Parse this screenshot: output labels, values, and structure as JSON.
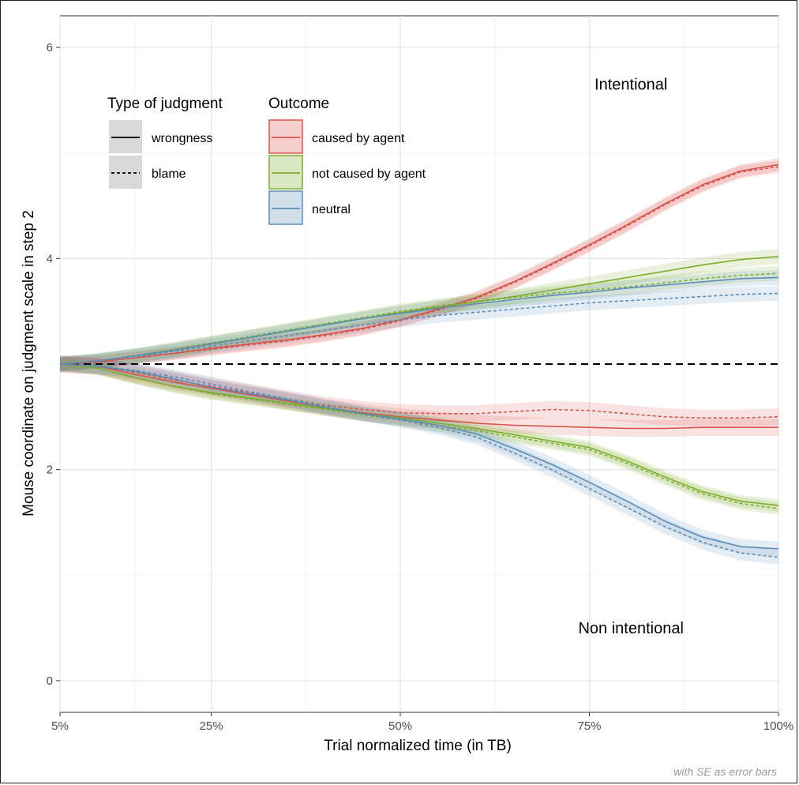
{
  "chart_data": {
    "type": "line",
    "title": "",
    "xlabel": "Trial normalized time (in TB)",
    "ylabel": "Mouse coordinate on judgment scale in step 2",
    "caption": "with SE as error bars",
    "x_ticks": [
      {
        "value": 5,
        "label": "5%"
      },
      {
        "value": 25,
        "label": "25%"
      },
      {
        "value": 50,
        "label": "50%"
      },
      {
        "value": 75,
        "label": "75%"
      },
      {
        "value": 100,
        "label": "100%"
      }
    ],
    "y_ticks": [
      {
        "value": 0,
        "label": "0"
      },
      {
        "value": 2,
        "label": "2"
      },
      {
        "value": 4,
        "label": "4"
      },
      {
        "value": 6,
        "label": "6"
      }
    ],
    "xlim": [
      5,
      100
    ],
    "ylim": [
      -0.3,
      6.3
    ],
    "grid": true,
    "reference_line": {
      "y": 3,
      "style": "dashed"
    },
    "annotations": [
      {
        "text": "Intentional",
        "x": 80.5,
        "y": 5.6
      },
      {
        "text": "Non intentional",
        "x": 80.5,
        "y": 0.45
      }
    ],
    "legend": {
      "placement": "top-left",
      "judgment": {
        "title": "Type of judgment",
        "items": [
          {
            "label": "wrongness",
            "linestyle": "solid"
          },
          {
            "label": "blame",
            "linestyle": "dashed"
          }
        ]
      },
      "outcome": {
        "title": "Outcome",
        "items": [
          {
            "label": "caused by agent",
            "color": "#d9534a"
          },
          {
            "label": "not caused by agent",
            "color": "#7cae2a"
          },
          {
            "label": "neutral",
            "color": "#5b8db8"
          }
        ]
      }
    },
    "x": [
      5,
      10,
      15,
      20,
      25,
      30,
      35,
      40,
      45,
      50,
      55,
      60,
      65,
      70,
      75,
      80,
      85,
      90,
      95,
      100
    ],
    "series": [
      {
        "condition": "Intentional",
        "outcome": "caused by agent",
        "judgment": "wrongness",
        "color": "#d9534a",
        "se": 0.06,
        "values": [
          3.0,
          3.02,
          3.06,
          3.1,
          3.15,
          3.19,
          3.23,
          3.28,
          3.34,
          3.42,
          3.52,
          3.63,
          3.78,
          3.95,
          4.13,
          4.32,
          4.52,
          4.7,
          4.83,
          4.89
        ]
      },
      {
        "condition": "Intentional",
        "outcome": "caused by agent",
        "judgment": "blame",
        "color": "#d9534a",
        "se": 0.06,
        "values": [
          3.0,
          3.02,
          3.06,
          3.1,
          3.14,
          3.18,
          3.22,
          3.27,
          3.33,
          3.41,
          3.51,
          3.62,
          3.77,
          3.94,
          4.12,
          4.31,
          4.51,
          4.69,
          4.82,
          4.87
        ]
      },
      {
        "condition": "Intentional",
        "outcome": "not caused by agent",
        "judgment": "wrongness",
        "color": "#7cae2a",
        "se": 0.07,
        "values": [
          3.0,
          3.03,
          3.08,
          3.13,
          3.19,
          3.25,
          3.31,
          3.37,
          3.43,
          3.49,
          3.54,
          3.59,
          3.64,
          3.7,
          3.76,
          3.82,
          3.88,
          3.94,
          3.99,
          4.02
        ]
      },
      {
        "condition": "Intentional",
        "outcome": "not caused by agent",
        "judgment": "blame",
        "color": "#7cae2a",
        "se": 0.07,
        "values": [
          3.0,
          3.03,
          3.08,
          3.14,
          3.2,
          3.26,
          3.32,
          3.38,
          3.44,
          3.5,
          3.55,
          3.59,
          3.63,
          3.67,
          3.7,
          3.73,
          3.77,
          3.81,
          3.84,
          3.86
        ]
      },
      {
        "condition": "Intentional",
        "outcome": "neutral",
        "judgment": "wrongness",
        "color": "#5b8db8",
        "se": 0.07,
        "values": [
          3.0,
          3.03,
          3.08,
          3.13,
          3.19,
          3.25,
          3.31,
          3.37,
          3.43,
          3.48,
          3.53,
          3.57,
          3.61,
          3.65,
          3.68,
          3.72,
          3.75,
          3.78,
          3.81,
          3.82
        ]
      },
      {
        "condition": "Intentional",
        "outcome": "neutral",
        "judgment": "blame",
        "color": "#5b8db8",
        "se": 0.07,
        "values": [
          3.0,
          3.03,
          3.07,
          3.12,
          3.17,
          3.22,
          3.27,
          3.32,
          3.37,
          3.42,
          3.46,
          3.49,
          3.52,
          3.55,
          3.58,
          3.6,
          3.62,
          3.64,
          3.66,
          3.67
        ]
      },
      {
        "condition": "Non intentional",
        "outcome": "caused by agent",
        "judgment": "wrongness",
        "color": "#d9534a",
        "se": 0.08,
        "values": [
          3.0,
          2.98,
          2.9,
          2.83,
          2.77,
          2.71,
          2.65,
          2.59,
          2.54,
          2.5,
          2.47,
          2.44,
          2.42,
          2.41,
          2.4,
          2.39,
          2.39,
          2.4,
          2.4,
          2.4
        ]
      },
      {
        "condition": "Non intentional",
        "outcome": "caused by agent",
        "judgment": "blame",
        "color": "#d9534a",
        "se": 0.08,
        "values": [
          3.0,
          2.98,
          2.92,
          2.85,
          2.79,
          2.73,
          2.67,
          2.61,
          2.57,
          2.54,
          2.53,
          2.53,
          2.55,
          2.57,
          2.56,
          2.53,
          2.5,
          2.49,
          2.49,
          2.5
        ]
      },
      {
        "condition": "Non intentional",
        "outcome": "not caused by agent",
        "judgment": "wrongness",
        "color": "#7cae2a",
        "se": 0.06,
        "values": [
          3.0,
          2.96,
          2.87,
          2.79,
          2.73,
          2.68,
          2.63,
          2.58,
          2.53,
          2.49,
          2.44,
          2.39,
          2.33,
          2.27,
          2.21,
          2.08,
          1.93,
          1.79,
          1.7,
          1.66
        ]
      },
      {
        "condition": "Non intentional",
        "outcome": "not caused by agent",
        "judgment": "blame",
        "color": "#7cae2a",
        "se": 0.06,
        "values": [
          3.0,
          2.96,
          2.87,
          2.79,
          2.72,
          2.67,
          2.62,
          2.57,
          2.52,
          2.47,
          2.42,
          2.37,
          2.31,
          2.25,
          2.19,
          2.06,
          1.91,
          1.77,
          1.68,
          1.63
        ]
      },
      {
        "condition": "Non intentional",
        "outcome": "neutral",
        "judgment": "wrongness",
        "color": "#5b8db8",
        "se": 0.07,
        "values": [
          3.0,
          2.98,
          2.93,
          2.86,
          2.78,
          2.72,
          2.66,
          2.59,
          2.53,
          2.48,
          2.42,
          2.34,
          2.2,
          2.05,
          1.88,
          1.7,
          1.51,
          1.36,
          1.27,
          1.25
        ]
      },
      {
        "condition": "Non intentional",
        "outcome": "neutral",
        "judgment": "blame",
        "color": "#5b8db8",
        "se": 0.07,
        "values": [
          3.0,
          2.98,
          2.94,
          2.88,
          2.81,
          2.74,
          2.67,
          2.6,
          2.53,
          2.47,
          2.4,
          2.31,
          2.16,
          2.0,
          1.82,
          1.64,
          1.46,
          1.31,
          1.21,
          1.17
        ]
      }
    ]
  }
}
